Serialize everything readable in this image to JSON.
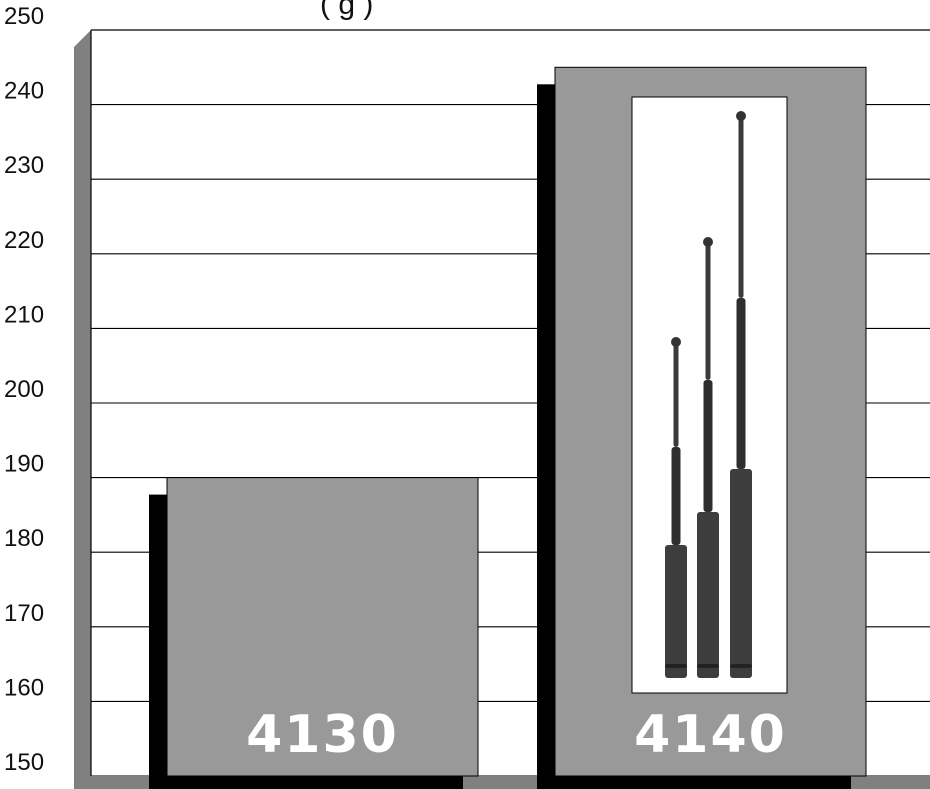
{
  "title_fragment": "(                                          g  )",
  "chart_data": {
    "type": "bar",
    "categories": [
      "4130",
      "4140"
    ],
    "values": [
      190,
      245
    ],
    "ylim": [
      150,
      250
    ],
    "yticks": [
      150,
      160,
      170,
      180,
      190,
      200,
      210,
      220,
      230,
      240,
      250
    ],
    "grid": true,
    "legend": "none"
  },
  "colors": {
    "bar_fill": "#999999",
    "bar_shadow": "#000000",
    "wall": "#808080",
    "grid": "#000000",
    "bar_label": "#ffffff",
    "baton": "#2a2a2a"
  },
  "image": {
    "semantic": "expandable-baton-photo-icon"
  }
}
